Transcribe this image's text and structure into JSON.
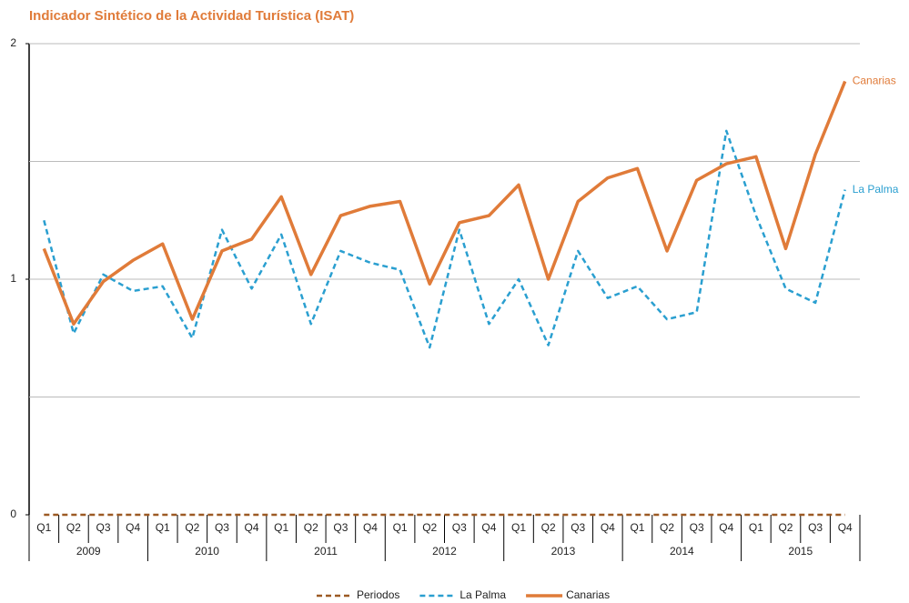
{
  "chart_data": {
    "type": "line",
    "title": "Indicador Sintético de la Actividad Turística (ISAT)",
    "title_color": "#e07b39",
    "categories": [
      "Q1",
      "Q2",
      "Q3",
      "Q4",
      "Q1",
      "Q2",
      "Q3",
      "Q4",
      "Q1",
      "Q2",
      "Q3",
      "Q4",
      "Q1",
      "Q2",
      "Q3",
      "Q4",
      "Q1",
      "Q2",
      "Q3",
      "Q4",
      "Q1",
      "Q2",
      "Q3",
      "Q4",
      "Q1",
      "Q2",
      "Q3",
      "Q4"
    ],
    "years": [
      "2009",
      "2010",
      "2011",
      "2012",
      "2013",
      "2014",
      "2015"
    ],
    "ylim": [
      0,
      2
    ],
    "yticks": [
      0,
      1,
      2
    ],
    "grid_lines": [
      0.5,
      1,
      1.5,
      2
    ],
    "series": [
      {
        "name": "Periodos",
        "color": "#9c5a24",
        "dashed": true,
        "end_label": false,
        "values": [
          0,
          0,
          0,
          0,
          0,
          0,
          0,
          0,
          0,
          0,
          0,
          0,
          0,
          0,
          0,
          0,
          0,
          0,
          0,
          0,
          0,
          0,
          0,
          0,
          0,
          0,
          0,
          0
        ]
      },
      {
        "name": "La Palma",
        "color": "#2a9fd0",
        "dashed": true,
        "end_label": true,
        "values": [
          1.25,
          0.77,
          1.02,
          0.95,
          0.97,
          0.75,
          1.21,
          0.96,
          1.19,
          0.81,
          1.12,
          1.07,
          1.04,
          0.71,
          1.21,
          0.81,
          1.0,
          0.72,
          1.12,
          0.92,
          0.97,
          0.83,
          0.86,
          1.63,
          1.27,
          0.96,
          0.9,
          1.38
        ]
      },
      {
        "name": "Canarias",
        "color": "#e07b39",
        "dashed": false,
        "end_label": true,
        "values": [
          1.13,
          0.81,
          0.99,
          1.08,
          1.15,
          0.83,
          1.12,
          1.17,
          1.35,
          1.02,
          1.27,
          1.31,
          1.33,
          0.98,
          1.24,
          1.27,
          1.4,
          1.0,
          1.33,
          1.43,
          1.47,
          1.12,
          1.42,
          1.49,
          1.52,
          1.13,
          1.53,
          1.84
        ]
      }
    ],
    "legend": "bottom"
  }
}
